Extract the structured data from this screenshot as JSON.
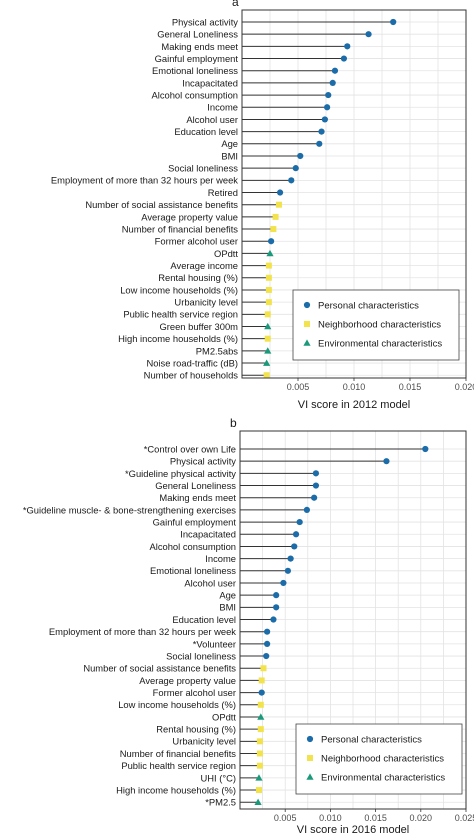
{
  "colors": {
    "personal": "#1b6ca8",
    "neighborhood": "#f2e34c",
    "environmental": "#1a9a7a",
    "stem": "#333333",
    "grid": "#e3e3e3",
    "panel_border": "#333333"
  },
  "chart_data": [
    {
      "type": "lollipop",
      "panel_label": "a",
      "xlabel": "VI score in 2012 model",
      "xlim": [
        0.0,
        0.02
      ],
      "xticks": [
        0.005,
        0.01,
        0.015,
        0.02
      ],
      "xtick_labels": [
        "0.005",
        "0.010",
        "0.015",
        "0.020"
      ],
      "grid": true,
      "legend_position": "bottom-right",
      "legend": [
        {
          "label": "Personal characteristics",
          "group": "personal",
          "marker": "circle"
        },
        {
          "label": "Neighborhood characteristics",
          "group": "neighborhood",
          "marker": "square"
        },
        {
          "label": "Environmental characteristics",
          "group": "environmental",
          "marker": "triangle"
        }
      ],
      "items": [
        {
          "label": "Physical activity",
          "value": 0.0135,
          "group": "personal"
        },
        {
          "label": "General Loneliness",
          "value": 0.0113,
          "group": "personal"
        },
        {
          "label": "Making ends meet",
          "value": 0.0094,
          "group": "personal"
        },
        {
          "label": "Gainful employment",
          "value": 0.0091,
          "group": "personal"
        },
        {
          "label": "Emotional loneliness",
          "value": 0.0083,
          "group": "personal"
        },
        {
          "label": "Incapacitated",
          "value": 0.0081,
          "group": "personal"
        },
        {
          "label": "Alcohol consumption",
          "value": 0.0077,
          "group": "personal"
        },
        {
          "label": "Income",
          "value": 0.0076,
          "group": "personal"
        },
        {
          "label": "Alcohol user",
          "value": 0.0074,
          "group": "personal"
        },
        {
          "label": "Education level",
          "value": 0.0071,
          "group": "personal"
        },
        {
          "label": "Age",
          "value": 0.0069,
          "group": "personal"
        },
        {
          "label": "BMI",
          "value": 0.0052,
          "group": "personal"
        },
        {
          "label": "Social loneliness",
          "value": 0.0048,
          "group": "personal"
        },
        {
          "label": "Employment of more than 32 hours per week",
          "value": 0.0044,
          "group": "personal"
        },
        {
          "label": "Retired",
          "value": 0.0034,
          "group": "personal"
        },
        {
          "label": "Number of social assistance benefits",
          "value": 0.0033,
          "group": "neighborhood"
        },
        {
          "label": "Average property value",
          "value": 0.003,
          "group": "neighborhood"
        },
        {
          "label": "Number of financial benefits",
          "value": 0.0028,
          "group": "neighborhood"
        },
        {
          "label": "Former alcohol user",
          "value": 0.0026,
          "group": "personal"
        },
        {
          "label": "OPdtt",
          "value": 0.0025,
          "group": "environmental"
        },
        {
          "label": "Average income",
          "value": 0.0024,
          "group": "neighborhood"
        },
        {
          "label": "Rental housing (%)",
          "value": 0.0024,
          "group": "neighborhood"
        },
        {
          "label": "Low income households (%)",
          "value": 0.0024,
          "group": "neighborhood"
        },
        {
          "label": "Urbanicity level",
          "value": 0.0024,
          "group": "neighborhood"
        },
        {
          "label": "Public health service region",
          "value": 0.0023,
          "group": "neighborhood"
        },
        {
          "label": "Green buffer 300m",
          "value": 0.0023,
          "group": "environmental"
        },
        {
          "label": "High income households (%)",
          "value": 0.0023,
          "group": "neighborhood"
        },
        {
          "label": "PM2.5abs",
          "value": 0.0023,
          "group": "environmental"
        },
        {
          "label": "Noise road-traffic (dB)",
          "value": 0.0022,
          "group": "environmental"
        },
        {
          "label": "Number of households",
          "value": 0.0022,
          "group": "neighborhood"
        }
      ]
    },
    {
      "type": "lollipop",
      "panel_label": "b",
      "xlabel": "VI score in 2016 model",
      "xlim": [
        0.0,
        0.025
      ],
      "xticks": [
        0.005,
        0.01,
        0.015,
        0.02,
        0.025
      ],
      "xtick_labels": [
        "0.005",
        "0.010",
        "0.015",
        "0.020",
        "0.025"
      ],
      "grid": true,
      "legend_position": "bottom-right",
      "legend": [
        {
          "label": "Personal characteristics",
          "group": "personal",
          "marker": "circle"
        },
        {
          "label": "Neighborhood characteristics",
          "group": "neighborhood",
          "marker": "square"
        },
        {
          "label": "Environmental characteristics",
          "group": "environmental",
          "marker": "triangle"
        }
      ],
      "items": [
        {
          "label": "*Control over own Life",
          "value": 0.0205,
          "group": "personal"
        },
        {
          "label": "Physical activity",
          "value": 0.0162,
          "group": "personal"
        },
        {
          "label": "*Guideline physical activity",
          "value": 0.0084,
          "group": "personal"
        },
        {
          "label": "General Loneliness",
          "value": 0.0084,
          "group": "personal"
        },
        {
          "label": "Making ends meet",
          "value": 0.0082,
          "group": "personal"
        },
        {
          "label": "*Guideline muscle- & bone-strengthening exercises",
          "value": 0.0074,
          "group": "personal"
        },
        {
          "label": "Gainful employment",
          "value": 0.0066,
          "group": "personal"
        },
        {
          "label": "Incapacitated",
          "value": 0.0062,
          "group": "personal"
        },
        {
          "label": "Alcohol consumption",
          "value": 0.006,
          "group": "personal"
        },
        {
          "label": "Income",
          "value": 0.0056,
          "group": "personal"
        },
        {
          "label": "Emotional loneliness",
          "value": 0.0053,
          "group": "personal"
        },
        {
          "label": "Alcohol user",
          "value": 0.0048,
          "group": "personal"
        },
        {
          "label": "Age",
          "value": 0.004,
          "group": "personal"
        },
        {
          "label": "BMI",
          "value": 0.004,
          "group": "personal"
        },
        {
          "label": "Education level",
          "value": 0.0037,
          "group": "personal"
        },
        {
          "label": "Employment of more than 32 hours per week",
          "value": 0.003,
          "group": "personal"
        },
        {
          "label": "*Volunteer",
          "value": 0.003,
          "group": "personal"
        },
        {
          "label": "Social loneliness",
          "value": 0.0029,
          "group": "personal"
        },
        {
          "label": "Number of social assistance benefits",
          "value": 0.0026,
          "group": "neighborhood"
        },
        {
          "label": "Average property value",
          "value": 0.0024,
          "group": "neighborhood"
        },
        {
          "label": "Former alcohol user",
          "value": 0.0024,
          "group": "personal"
        },
        {
          "label": "Low income households (%)",
          "value": 0.0023,
          "group": "neighborhood"
        },
        {
          "label": "OPdtt",
          "value": 0.0023,
          "group": "environmental"
        },
        {
          "label": "Rental housing (%)",
          "value": 0.0023,
          "group": "neighborhood"
        },
        {
          "label": "Urbanicity level",
          "value": 0.0022,
          "group": "neighborhood"
        },
        {
          "label": "Number of financial benefits",
          "value": 0.0022,
          "group": "neighborhood"
        },
        {
          "label": "Public health service region",
          "value": 0.0022,
          "group": "neighborhood"
        },
        {
          "label": "UHI (°C)",
          "value": 0.0021,
          "group": "environmental"
        },
        {
          "label": "High income households (%)",
          "value": 0.0021,
          "group": "neighborhood"
        },
        {
          "label": "*PM2.5",
          "value": 0.002,
          "group": "environmental"
        }
      ]
    }
  ]
}
